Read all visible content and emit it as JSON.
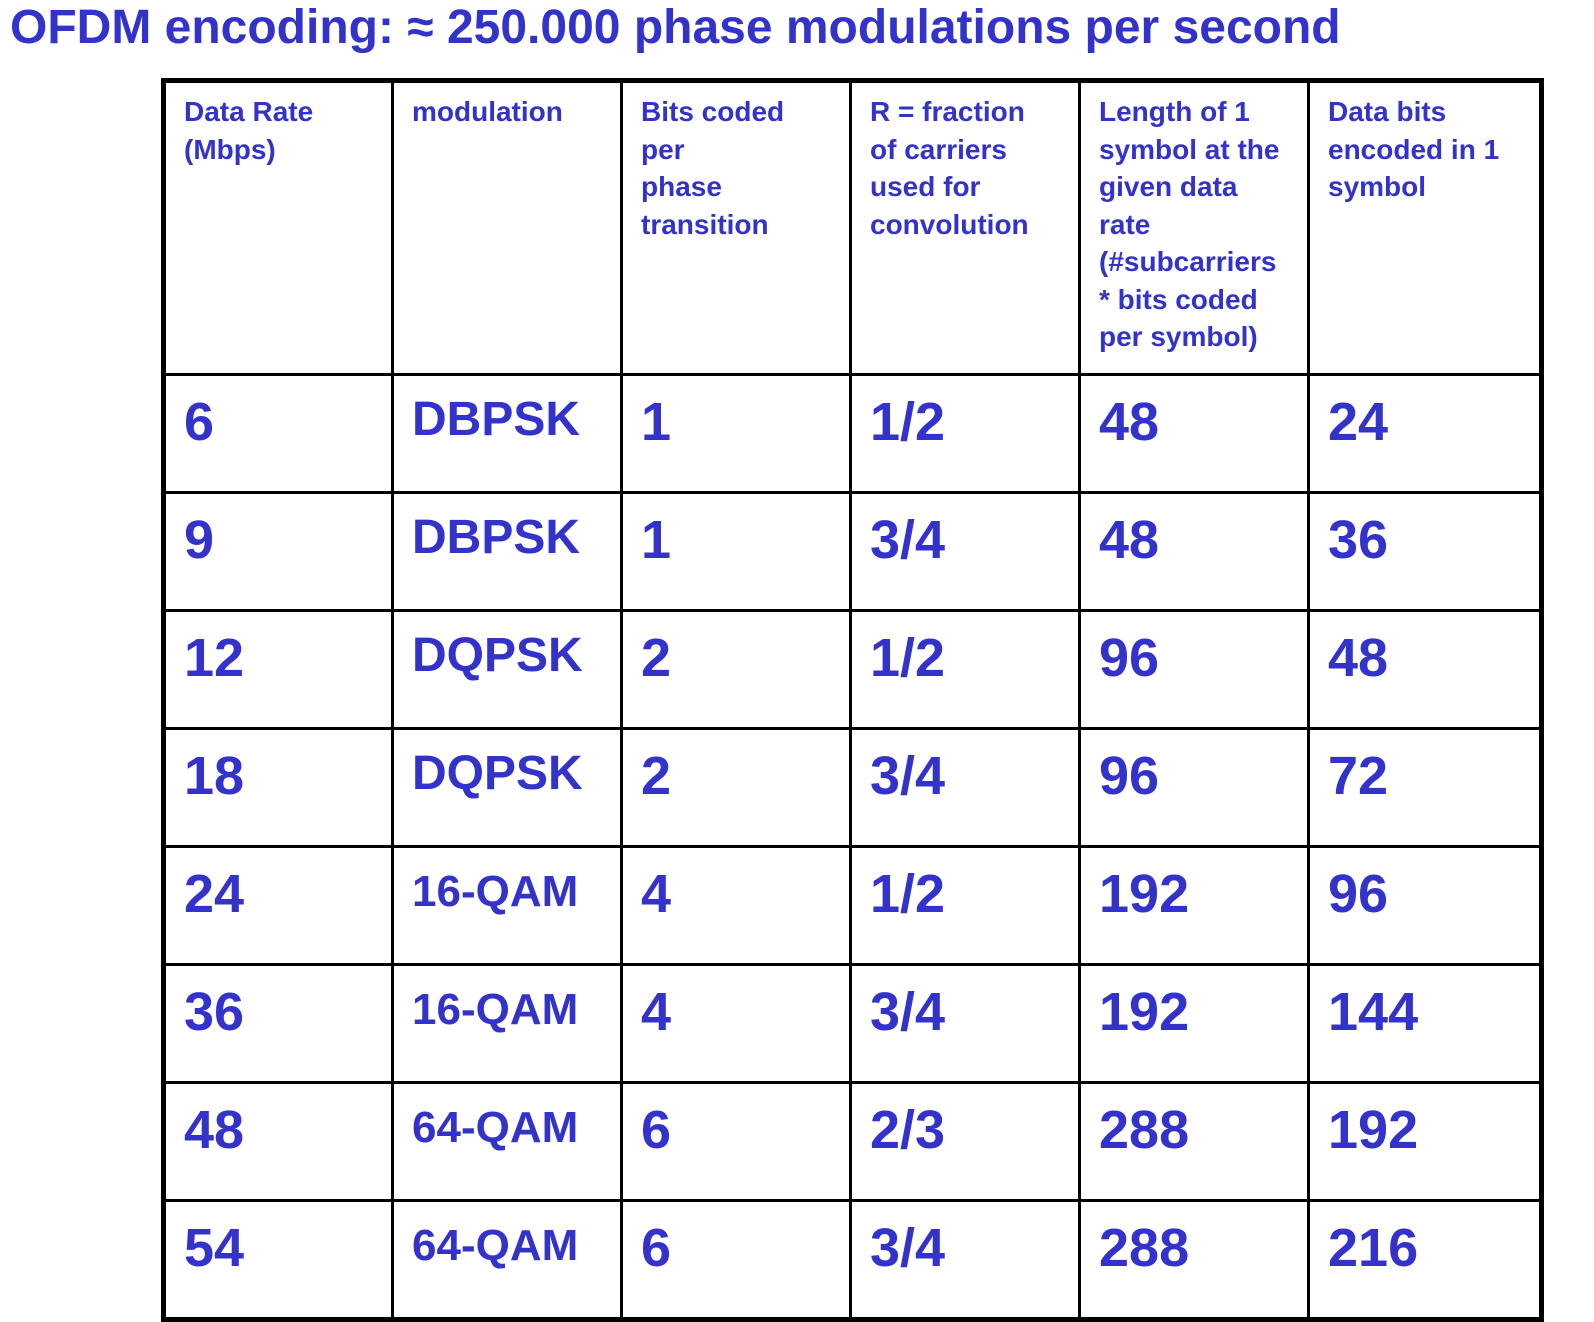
{
  "title": "OFDM encoding: ≈ 250.000 phase modulations per second",
  "headers": [
    "Data Rate\n(Mbps)",
    "modulation",
    "Bits coded\nper\nphase\ntransition",
    "R = fraction\nof carriers\nused for\nconvolution",
    "Length of 1\nsymbol at the\ngiven data\nrate\n(#subcarriers\n* bits coded\nper symbol)",
    "Data bits\nencoded in 1\nsymbol"
  ],
  "rows": [
    [
      "6",
      "DBPSK",
      "1",
      "1/2",
      "48",
      "24"
    ],
    [
      "9",
      "DBPSK",
      "1",
      "3/4",
      "48",
      "36"
    ],
    [
      "12",
      "DQPSK",
      "2",
      "1/2",
      "96",
      "48"
    ],
    [
      "18",
      "DQPSK",
      "2",
      "3/4",
      "96",
      "72"
    ],
    [
      "24",
      "16-QAM",
      "4",
      "1/2",
      "192",
      "96"
    ],
    [
      "36",
      "16-QAM",
      "4",
      "3/4",
      "192",
      "144"
    ],
    [
      "48",
      "64-QAM",
      "6",
      "2/3",
      "288",
      "192"
    ],
    [
      "54",
      "64-QAM",
      "6",
      "3/4",
      "288",
      "216"
    ]
  ],
  "colors": {
    "text": "#3333cc",
    "border": "#000000",
    "background": "#ffffff"
  }
}
